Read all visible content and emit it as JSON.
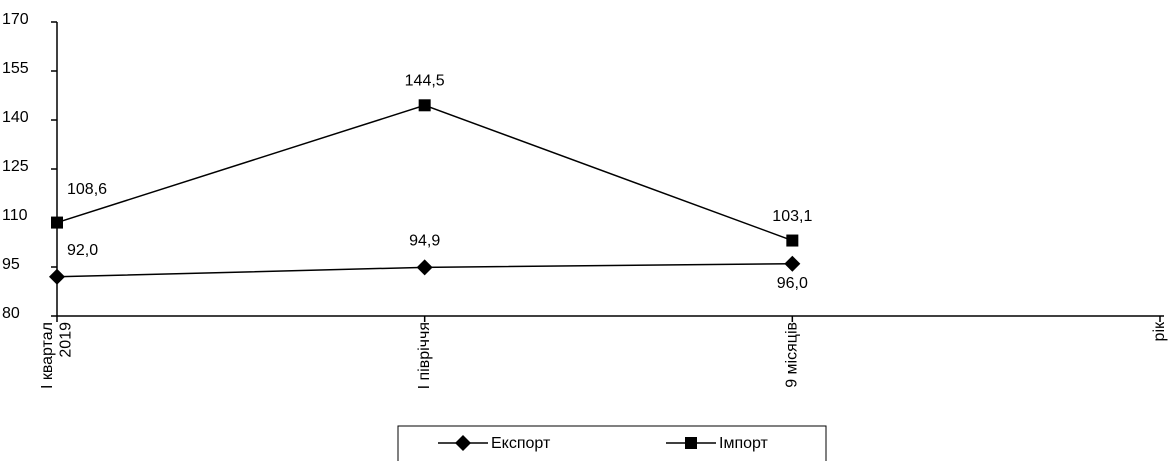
{
  "chart_data": {
    "type": "line",
    "categories": [
      "I квартал 2019",
      "I півріччя",
      "9 місяців",
      "рік"
    ],
    "series": [
      {
        "name": "Експорт",
        "color": "#000000",
        "marker": "diamond",
        "values": [
          92.0,
          94.9,
          96.0,
          null
        ],
        "value_labels": [
          "92,0",
          "94,9",
          "96,0",
          null
        ]
      },
      {
        "name": "Імпорт",
        "color": "#000000",
        "marker": "square",
        "values": [
          108.6,
          144.5,
          103.1,
          null
        ],
        "value_labels": [
          "108,6",
          "144,5",
          "103,1",
          null
        ]
      }
    ],
    "ylim": [
      80,
      170
    ],
    "yticks": [
      80,
      95,
      110,
      125,
      140,
      155,
      170
    ],
    "grid": false
  }
}
